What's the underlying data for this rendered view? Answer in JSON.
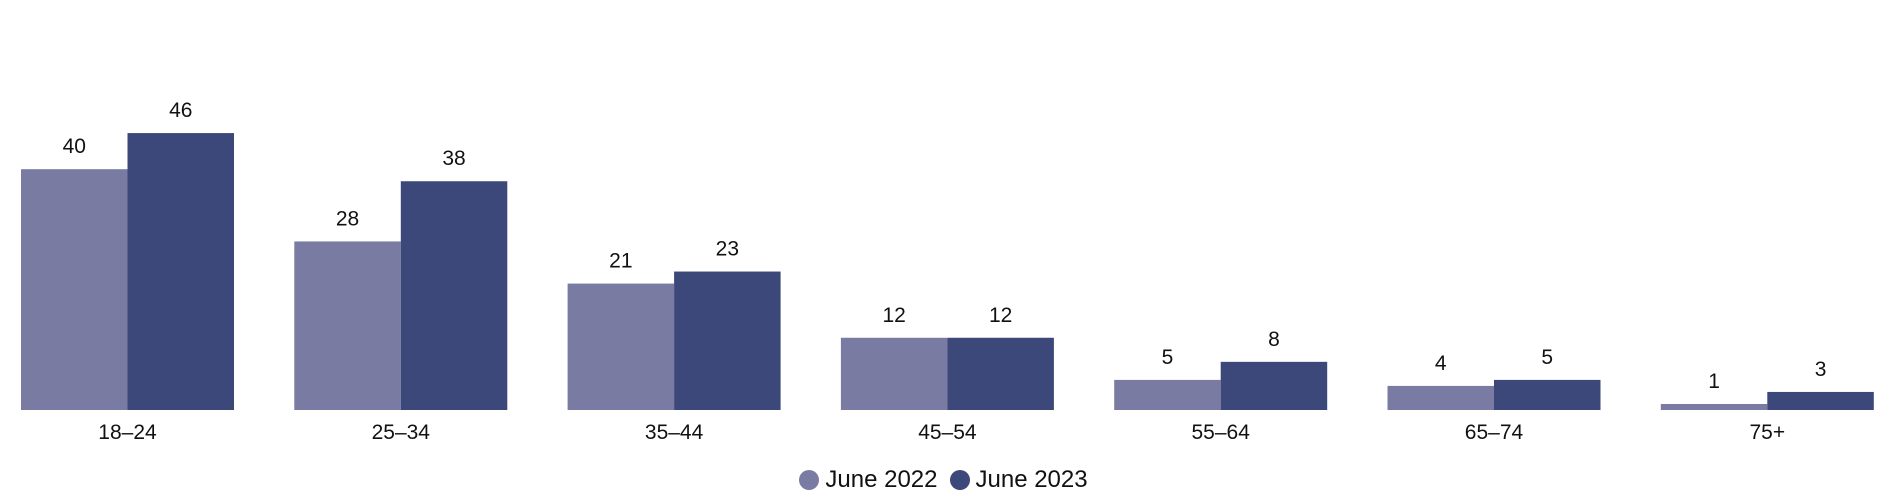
{
  "chart_data": {
    "type": "bar",
    "categories": [
      "18–24",
      "25–34",
      "35–44",
      "45–54",
      "55–64",
      "65–74",
      "75+"
    ],
    "series": [
      {
        "name": "June 2022",
        "values": [
          40,
          28,
          21,
          12,
          5,
          4,
          1
        ],
        "color": "#7a7ba3"
      },
      {
        "name": "June 2023",
        "values": [
          46,
          38,
          23,
          12,
          8,
          5,
          3
        ],
        "color": "#3b4879"
      }
    ],
    "title": "",
    "xlabel": "",
    "ylabel": "",
    "ylim": [
      0,
      50
    ],
    "grid": false,
    "legend_position": "bottom-center"
  }
}
